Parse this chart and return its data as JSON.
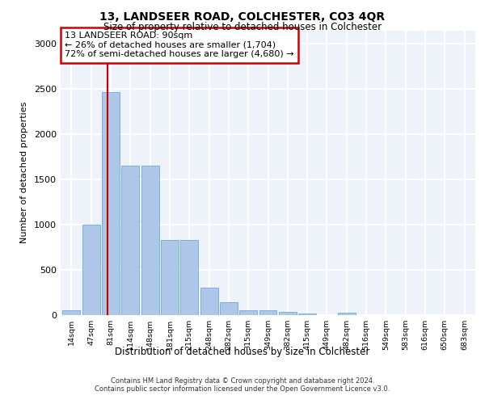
{
  "title": "13, LANDSEER ROAD, COLCHESTER, CO3 4QR",
  "subtitle": "Size of property relative to detached houses in Colchester",
  "xlabel": "Distribution of detached houses by size in Colchester",
  "ylabel": "Number of detached properties",
  "categories": [
    "14sqm",
    "47sqm",
    "81sqm",
    "114sqm",
    "148sqm",
    "181sqm",
    "215sqm",
    "248sqm",
    "282sqm",
    "315sqm",
    "349sqm",
    "382sqm",
    "415sqm",
    "449sqm",
    "482sqm",
    "516sqm",
    "549sqm",
    "583sqm",
    "616sqm",
    "650sqm",
    "683sqm"
  ],
  "values": [
    52,
    1000,
    2470,
    1650,
    1650,
    830,
    830,
    300,
    140,
    55,
    55,
    40,
    20,
    0,
    28,
    0,
    0,
    0,
    0,
    0,
    0
  ],
  "bar_color": "#aec6e8",
  "bar_edge_color": "#5a9fd4",
  "bar_width": 0.9,
  "property_line_x": 1.82,
  "property_line_color": "#cc0000",
  "annotation_text": "13 LANDSEER ROAD: 90sqm\n← 26% of detached houses are smaller (1,704)\n72% of semi-detached houses are larger (4,680) →",
  "annotation_box_color": "#cc0000",
  "ylim": [
    0,
    3150
  ],
  "yticks": [
    0,
    500,
    1000,
    1500,
    2000,
    2500,
    3000
  ],
  "background_color": "#eef2f9",
  "grid_color": "#ffffff",
  "footer_line1": "Contains HM Land Registry data © Crown copyright and database right 2024.",
  "footer_line2": "Contains public sector information licensed under the Open Government Licence v3.0."
}
